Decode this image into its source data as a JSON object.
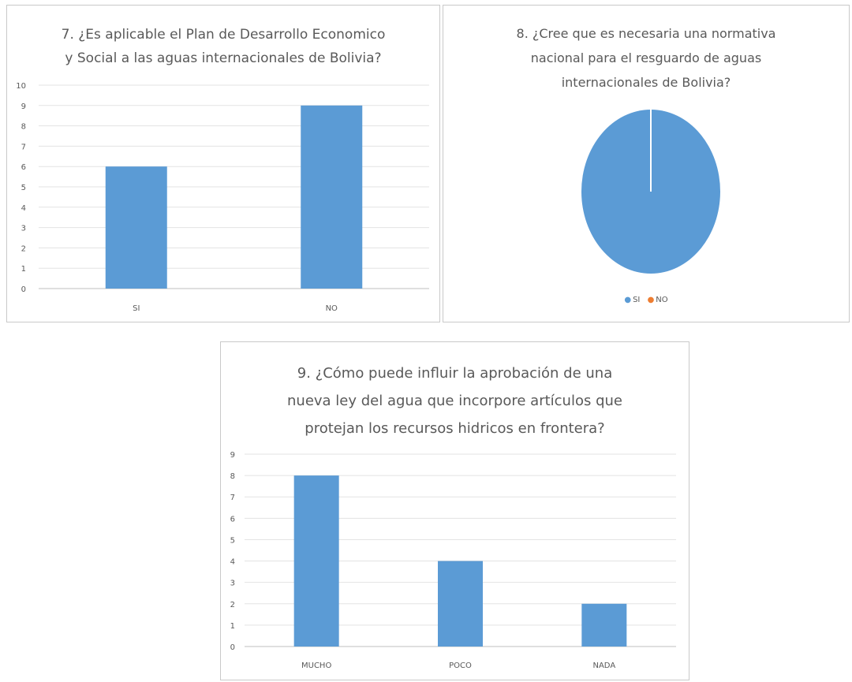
{
  "chart_data": [
    {
      "type": "bar",
      "title": "7. ¿Es aplicable el Plan de Desarrollo Economico\ny Social a las aguas internacionales de Bolivia?",
      "categories": [
        "SI",
        "NO"
      ],
      "values": [
        6,
        9
      ],
      "ylim": [
        0,
        10
      ],
      "yticks": [
        0,
        1,
        2,
        3,
        4,
        5,
        6,
        7,
        8,
        9,
        10
      ],
      "grid": true,
      "color": "#5b9bd5"
    },
    {
      "type": "pie",
      "title": "8. ¿Cree que es necesaria una normativa\nnacional para el resguardo de aguas\ninternacionales de Bolivia?",
      "labels": [
        "SI",
        "NO"
      ],
      "values": [
        15,
        0
      ],
      "colors": [
        "#5b9bd5",
        "#ed7d31"
      ],
      "legend": "bottom"
    },
    {
      "type": "bar",
      "title": "9. ¿Cómo puede influir la aprobación de una\nnueva ley del agua que incorpore artículos que\nprotejan los recursos hidricos en frontera?",
      "categories": [
        "MUCHO",
        "POCO",
        "NADA"
      ],
      "values": [
        8,
        4,
        2
      ],
      "ylim": [
        0,
        9
      ],
      "yticks": [
        0,
        1,
        2,
        3,
        4,
        5,
        6,
        7,
        8,
        9
      ],
      "grid": true,
      "color": "#5b9bd5"
    }
  ]
}
